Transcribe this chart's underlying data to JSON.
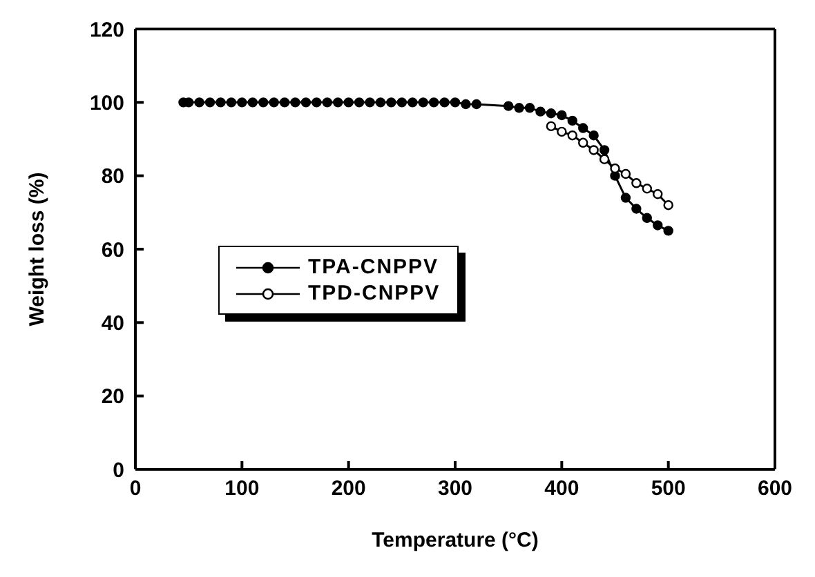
{
  "chart_data": {
    "type": "line",
    "xlabel": "Temperature  (°C)",
    "ylabel": "Weight loss (%)",
    "xlim": [
      0,
      600
    ],
    "ylim": [
      0,
      120
    ],
    "xticks": [
      0,
      100,
      200,
      300,
      400,
      500,
      600
    ],
    "yticks": [
      0,
      20,
      40,
      60,
      80,
      100,
      120
    ],
    "grid": false,
    "legend": "center left",
    "marker": "circle",
    "line_style": "solid",
    "series": [
      {
        "name": "TPA-CNPPV",
        "color": "#000000",
        "x": [
          45,
          50,
          60,
          70,
          80,
          90,
          100,
          110,
          120,
          130,
          140,
          150,
          160,
          170,
          180,
          190,
          200,
          210,
          220,
          230,
          240,
          250,
          260,
          270,
          280,
          290,
          300,
          310,
          320,
          350,
          360,
          370,
          380,
          390,
          400,
          410,
          420,
          430,
          440,
          450,
          460,
          470,
          480,
          490,
          500
        ],
        "values": [
          100,
          100,
          100,
          100,
          100,
          100,
          100,
          100,
          100,
          100,
          100,
          100,
          100,
          100,
          100,
          100,
          100,
          100,
          100,
          100,
          100,
          100,
          100,
          100,
          100,
          100,
          100,
          99.5,
          99.5,
          99,
          98.5,
          98.5,
          97.5,
          97,
          96.5,
          95,
          93,
          91,
          87,
          80,
          74,
          71,
          68.5,
          66.5,
          65
        ]
      },
      {
        "name": "TPD-CNPPV",
        "color": "#000000",
        "x": [
          390,
          400,
          410,
          420,
          430,
          440,
          450,
          460,
          470,
          480,
          490,
          500
        ],
        "values": [
          93.5,
          92,
          91,
          89,
          87,
          84.5,
          82,
          80.5,
          78,
          76.5,
          75,
          72
        ]
      }
    ]
  }
}
